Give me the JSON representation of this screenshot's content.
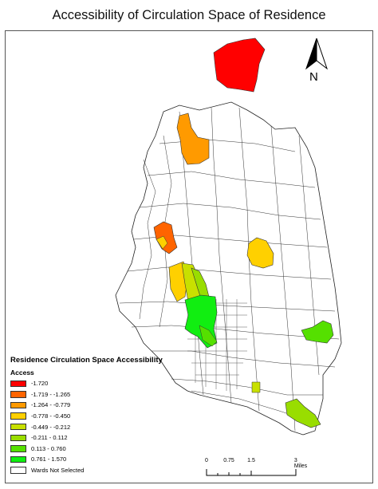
{
  "title": "Accessibility of Circulation Space of Residence",
  "north_label": "N",
  "legend": {
    "title": "Residence Circulation Space Accessibility",
    "subtitle": "Access",
    "items": [
      {
        "label": "-1.720",
        "color": "#ff0000"
      },
      {
        "label": "-1.719 - -1.265",
        "color": "#ff6400"
      },
      {
        "label": "-1.264 - -0.779",
        "color": "#ff9a00"
      },
      {
        "label": "-0.778 - -0.450",
        "color": "#ffd000"
      },
      {
        "label": "-0.449 - -0.212",
        "color": "#c8e000"
      },
      {
        "label": "-0.211 - 0.112",
        "color": "#99dd00"
      },
      {
        "label": "0.113 - 0.760",
        "color": "#55e000"
      },
      {
        "label": "0.761 - 1.570",
        "color": "#11ee11"
      },
      {
        "label": "Wards Not Selected",
        "color": "#ffffff"
      }
    ]
  },
  "scale_bar": {
    "ticks": [
      "0",
      "0.75",
      "1.5",
      "3 Miles"
    ]
  }
}
